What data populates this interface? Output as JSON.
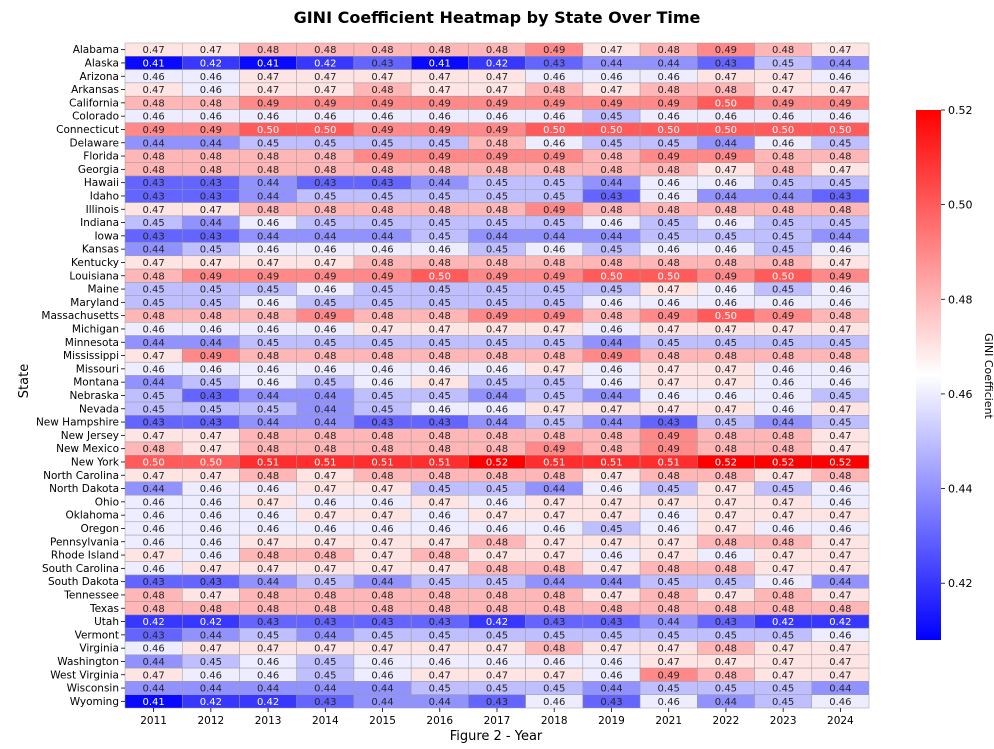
{
  "chart_data": {
    "type": "heatmap",
    "title": "GINI Coefficient Heatmap by State Over Time",
    "xlabel": "Figure 2 - Year",
    "ylabel": "State",
    "colorbar_label": "GINI Coefficient",
    "colorbar_ticks": [
      "0.42",
      "0.44",
      "0.46",
      "0.48",
      "0.50",
      "0.52"
    ],
    "color_range": [
      0.408,
      0.52
    ],
    "colormap": [
      "#0000ff",
      "#ffffff",
      "#ff0000"
    ],
    "legend": "right",
    "years": [
      "2011",
      "2012",
      "2013",
      "2014",
      "2015",
      "2016",
      "2017",
      "2018",
      "2019",
      "2021",
      "2022",
      "2023",
      "2024"
    ],
    "states": [
      "Alabama",
      "Alaska",
      "Arizona",
      "Arkansas",
      "California",
      "Colorado",
      "Connecticut",
      "Delaware",
      "Florida",
      "Georgia",
      "Hawaii",
      "Idaho",
      "Illinois",
      "Indiana",
      "Iowa",
      "Kansas",
      "Kentucky",
      "Louisiana",
      "Maine",
      "Maryland",
      "Massachusetts",
      "Michigan",
      "Minnesota",
      "Mississippi",
      "Missouri",
      "Montana",
      "Nebraska",
      "Nevada",
      "New Hampshire",
      "New Jersey",
      "New Mexico",
      "New York",
      "North Carolina",
      "North Dakota",
      "Ohio",
      "Oklahoma",
      "Oregon",
      "Pennsylvania",
      "Rhode Island",
      "South Carolina",
      "South Dakota",
      "Tennessee",
      "Texas",
      "Utah",
      "Vermont",
      "Virginia",
      "Washington",
      "West Virginia",
      "Wisconsin",
      "Wyoming"
    ],
    "values": [
      [
        0.47,
        0.47,
        0.48,
        0.48,
        0.48,
        0.48,
        0.48,
        0.49,
        0.47,
        0.48,
        0.49,
        0.48,
        0.47
      ],
      [
        0.41,
        0.42,
        0.41,
        0.42,
        0.43,
        0.41,
        0.42,
        0.43,
        0.44,
        0.44,
        0.43,
        0.45,
        0.44
      ],
      [
        0.46,
        0.46,
        0.47,
        0.47,
        0.47,
        0.47,
        0.47,
        0.46,
        0.46,
        0.46,
        0.47,
        0.47,
        0.46
      ],
      [
        0.47,
        0.46,
        0.47,
        0.47,
        0.48,
        0.47,
        0.47,
        0.48,
        0.47,
        0.48,
        0.48,
        0.47,
        0.47
      ],
      [
        0.48,
        0.48,
        0.49,
        0.49,
        0.49,
        0.49,
        0.49,
        0.49,
        0.49,
        0.49,
        0.5,
        0.49,
        0.49
      ],
      [
        0.46,
        0.46,
        0.46,
        0.46,
        0.46,
        0.46,
        0.46,
        0.46,
        0.45,
        0.46,
        0.46,
        0.46,
        0.46
      ],
      [
        0.49,
        0.49,
        0.5,
        0.5,
        0.49,
        0.49,
        0.49,
        0.5,
        0.5,
        0.5,
        0.5,
        0.5,
        0.5
      ],
      [
        0.44,
        0.44,
        0.45,
        0.45,
        0.45,
        0.45,
        0.48,
        0.46,
        0.45,
        0.45,
        0.44,
        0.46,
        0.45
      ],
      [
        0.48,
        0.48,
        0.48,
        0.48,
        0.49,
        0.49,
        0.49,
        0.49,
        0.48,
        0.49,
        0.49,
        0.48,
        0.48
      ],
      [
        0.48,
        0.48,
        0.48,
        0.48,
        0.48,
        0.48,
        0.48,
        0.48,
        0.48,
        0.48,
        0.47,
        0.48,
        0.47
      ],
      [
        0.43,
        0.43,
        0.44,
        0.43,
        0.43,
        0.44,
        0.45,
        0.45,
        0.44,
        0.46,
        0.46,
        0.45,
        0.45
      ],
      [
        0.43,
        0.43,
        0.44,
        0.45,
        0.45,
        0.45,
        0.45,
        0.45,
        0.43,
        0.46,
        0.44,
        0.44,
        0.43
      ],
      [
        0.47,
        0.47,
        0.48,
        0.48,
        0.48,
        0.48,
        0.48,
        0.49,
        0.48,
        0.48,
        0.48,
        0.48,
        0.48
      ],
      [
        0.45,
        0.44,
        0.46,
        0.45,
        0.45,
        0.45,
        0.45,
        0.45,
        0.46,
        0.45,
        0.46,
        0.45,
        0.45
      ],
      [
        0.43,
        0.43,
        0.44,
        0.44,
        0.44,
        0.45,
        0.44,
        0.44,
        0.44,
        0.45,
        0.45,
        0.45,
        0.44
      ],
      [
        0.44,
        0.45,
        0.46,
        0.46,
        0.46,
        0.46,
        0.45,
        0.46,
        0.45,
        0.46,
        0.46,
        0.45,
        0.46
      ],
      [
        0.47,
        0.47,
        0.47,
        0.47,
        0.48,
        0.48,
        0.48,
        0.48,
        0.48,
        0.48,
        0.48,
        0.48,
        0.47
      ],
      [
        0.48,
        0.49,
        0.49,
        0.49,
        0.49,
        0.5,
        0.49,
        0.49,
        0.5,
        0.5,
        0.49,
        0.5,
        0.49
      ],
      [
        0.45,
        0.45,
        0.45,
        0.46,
        0.45,
        0.45,
        0.45,
        0.45,
        0.45,
        0.47,
        0.46,
        0.45,
        0.46
      ],
      [
        0.45,
        0.45,
        0.46,
        0.45,
        0.45,
        0.45,
        0.45,
        0.45,
        0.46,
        0.46,
        0.46,
        0.46,
        0.46
      ],
      [
        0.48,
        0.48,
        0.48,
        0.49,
        0.48,
        0.48,
        0.49,
        0.49,
        0.48,
        0.49,
        0.5,
        0.49,
        0.48
      ],
      [
        0.46,
        0.46,
        0.46,
        0.46,
        0.47,
        0.47,
        0.47,
        0.47,
        0.46,
        0.47,
        0.47,
        0.47,
        0.47
      ],
      [
        0.44,
        0.44,
        0.45,
        0.45,
        0.45,
        0.45,
        0.45,
        0.45,
        0.44,
        0.45,
        0.45,
        0.45,
        0.45
      ],
      [
        0.47,
        0.49,
        0.48,
        0.48,
        0.48,
        0.48,
        0.48,
        0.48,
        0.49,
        0.48,
        0.48,
        0.48,
        0.48
      ],
      [
        0.46,
        0.46,
        0.46,
        0.46,
        0.46,
        0.46,
        0.46,
        0.47,
        0.46,
        0.47,
        0.47,
        0.46,
        0.46
      ],
      [
        0.44,
        0.45,
        0.46,
        0.45,
        0.46,
        0.47,
        0.45,
        0.45,
        0.46,
        0.47,
        0.47,
        0.46,
        0.46
      ],
      [
        0.45,
        0.43,
        0.44,
        0.44,
        0.45,
        0.45,
        0.44,
        0.45,
        0.44,
        0.46,
        0.46,
        0.46,
        0.45
      ],
      [
        0.45,
        0.45,
        0.45,
        0.44,
        0.45,
        0.46,
        0.46,
        0.47,
        0.47,
        0.47,
        0.47,
        0.46,
        0.47
      ],
      [
        0.43,
        0.43,
        0.44,
        0.44,
        0.43,
        0.43,
        0.44,
        0.45,
        0.44,
        0.43,
        0.45,
        0.44,
        0.45
      ],
      [
        0.47,
        0.47,
        0.48,
        0.48,
        0.48,
        0.48,
        0.48,
        0.48,
        0.48,
        0.49,
        0.48,
        0.48,
        0.47
      ],
      [
        0.48,
        0.47,
        0.48,
        0.48,
        0.48,
        0.48,
        0.48,
        0.49,
        0.48,
        0.49,
        0.48,
        0.48,
        0.47
      ],
      [
        0.5,
        0.5,
        0.51,
        0.51,
        0.51,
        0.51,
        0.52,
        0.51,
        0.51,
        0.51,
        0.52,
        0.52,
        0.52
      ],
      [
        0.47,
        0.47,
        0.48,
        0.47,
        0.48,
        0.48,
        0.48,
        0.48,
        0.47,
        0.48,
        0.48,
        0.47,
        0.48
      ],
      [
        0.44,
        0.46,
        0.46,
        0.47,
        0.47,
        0.45,
        0.45,
        0.44,
        0.46,
        0.45,
        0.47,
        0.45,
        0.46
      ],
      [
        0.46,
        0.46,
        0.47,
        0.46,
        0.46,
        0.47,
        0.46,
        0.47,
        0.47,
        0.47,
        0.47,
        0.47,
        0.46
      ],
      [
        0.46,
        0.46,
        0.46,
        0.47,
        0.47,
        0.46,
        0.47,
        0.47,
        0.47,
        0.46,
        0.47,
        0.47,
        0.47
      ],
      [
        0.46,
        0.46,
        0.46,
        0.46,
        0.46,
        0.46,
        0.46,
        0.46,
        0.45,
        0.46,
        0.47,
        0.46,
        0.46
      ],
      [
        0.46,
        0.46,
        0.47,
        0.47,
        0.47,
        0.47,
        0.48,
        0.47,
        0.47,
        0.47,
        0.48,
        0.48,
        0.47
      ],
      [
        0.47,
        0.46,
        0.48,
        0.48,
        0.47,
        0.48,
        0.47,
        0.47,
        0.46,
        0.47,
        0.46,
        0.47,
        0.47
      ],
      [
        0.46,
        0.47,
        0.47,
        0.47,
        0.47,
        0.47,
        0.48,
        0.48,
        0.47,
        0.48,
        0.48,
        0.47,
        0.47
      ],
      [
        0.43,
        0.43,
        0.44,
        0.45,
        0.44,
        0.45,
        0.45,
        0.44,
        0.44,
        0.45,
        0.45,
        0.46,
        0.44
      ],
      [
        0.48,
        0.47,
        0.48,
        0.48,
        0.48,
        0.48,
        0.48,
        0.48,
        0.47,
        0.48,
        0.47,
        0.48,
        0.47
      ],
      [
        0.48,
        0.48,
        0.48,
        0.48,
        0.48,
        0.48,
        0.48,
        0.48,
        0.48,
        0.48,
        0.48,
        0.48,
        0.48
      ],
      [
        0.42,
        0.42,
        0.43,
        0.43,
        0.43,
        0.43,
        0.42,
        0.43,
        0.43,
        0.44,
        0.43,
        0.42,
        0.42
      ],
      [
        0.43,
        0.44,
        0.45,
        0.44,
        0.45,
        0.45,
        0.45,
        0.45,
        0.45,
        0.45,
        0.45,
        0.45,
        0.46
      ],
      [
        0.46,
        0.47,
        0.47,
        0.47,
        0.47,
        0.47,
        0.47,
        0.48,
        0.47,
        0.47,
        0.48,
        0.47,
        0.47
      ],
      [
        0.44,
        0.45,
        0.46,
        0.45,
        0.46,
        0.46,
        0.46,
        0.46,
        0.46,
        0.47,
        0.47,
        0.47,
        0.47
      ],
      [
        0.47,
        0.46,
        0.46,
        0.45,
        0.46,
        0.47,
        0.47,
        0.47,
        0.46,
        0.49,
        0.48,
        0.47,
        0.47
      ],
      [
        0.44,
        0.44,
        0.44,
        0.44,
        0.44,
        0.45,
        0.45,
        0.45,
        0.44,
        0.45,
        0.45,
        0.45,
        0.44
      ],
      [
        0.41,
        0.42,
        0.42,
        0.43,
        0.44,
        0.44,
        0.43,
        0.46,
        0.43,
        0.46,
        0.44,
        0.45,
        0.46
      ]
    ]
  }
}
